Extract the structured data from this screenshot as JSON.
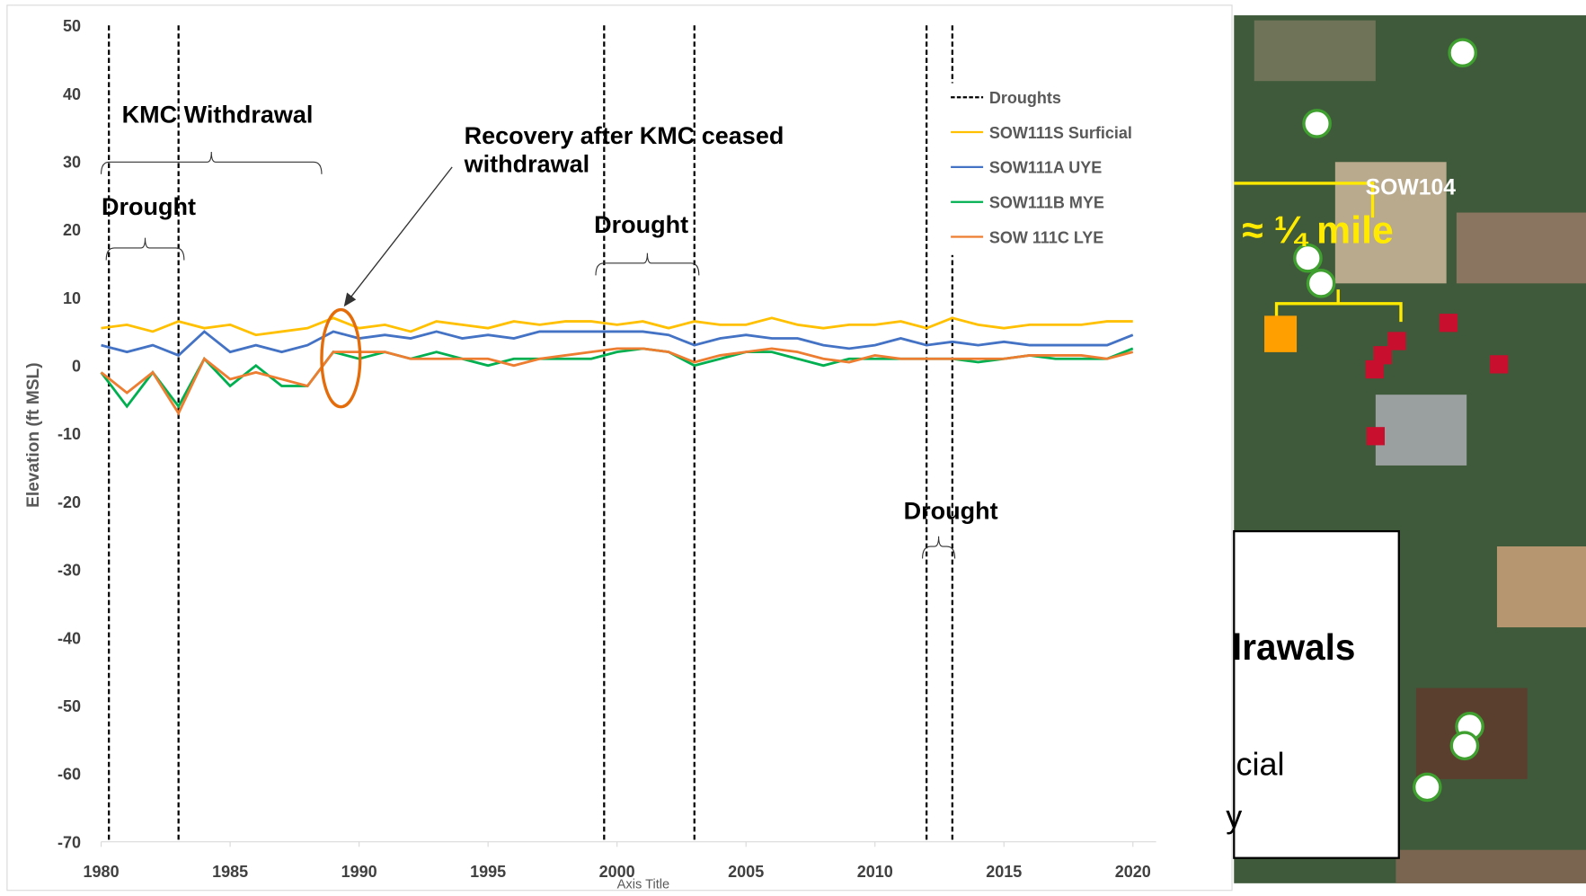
{
  "chart_data": {
    "type": "line",
    "y_title": "Elevation (ft MSL)",
    "x_title": "Axis Title",
    "xlim": [
      1980,
      2020.9
    ],
    "xticks": [
      1980,
      1985,
      1990,
      1995,
      2000,
      2005,
      2010,
      2015,
      2020
    ],
    "ylim": [
      -70,
      50
    ],
    "yticks": [
      -70,
      -60,
      -50,
      -40,
      -30,
      -20,
      -10,
      0,
      10,
      20,
      30,
      40,
      50
    ],
    "grid": false,
    "droughts": {
      "name": "Droughts",
      "color": "#000000",
      "x": [
        1980.3,
        1983,
        1999.5,
        2003,
        2012,
        2013
      ]
    },
    "x": [
      1980,
      1981,
      1982,
      1983,
      1984,
      1985,
      1986,
      1987,
      1988,
      1989,
      1990,
      1991,
      1992,
      1993,
      1994,
      1995,
      1996,
      1997,
      1998,
      1999,
      2000,
      2001,
      2002,
      2003,
      2004,
      2005,
      2006,
      2007,
      2008,
      2009,
      2010,
      2011,
      2012,
      2013,
      2014,
      2015,
      2016,
      2017,
      2018,
      2019,
      2020
    ],
    "series": [
      {
        "name": "SOW111S Surficial",
        "color": "#ffc000",
        "values": [
          5.5,
          6,
          5,
          6.5,
          5.5,
          6,
          4.5,
          5,
          5.5,
          7,
          5.5,
          6,
          5,
          6.5,
          6,
          5.5,
          6.5,
          6,
          6.5,
          6.5,
          6,
          6.5,
          5.5,
          6.5,
          6,
          6,
          7,
          6,
          5.5,
          6,
          6,
          6.5,
          5.5,
          7,
          6,
          5.5,
          6,
          6,
          6,
          6.5,
          6.5
        ]
      },
      {
        "name": "SOW111A UYE",
        "color": "#4472c4",
        "values": [
          3,
          2,
          3,
          1.5,
          5,
          2,
          3,
          2,
          3,
          5,
          4,
          4.5,
          4,
          5,
          4,
          4.5,
          4,
          5,
          5,
          5,
          5,
          5,
          4.5,
          3,
          4,
          4.5,
          4,
          4,
          3,
          2.5,
          3,
          4,
          3,
          3.5,
          3,
          3.5,
          3,
          3,
          3,
          3,
          4.5
        ]
      },
      {
        "name": "SOW111B MYE",
        "color": "#00b050",
        "values": [
          -1,
          -6,
          -1,
          -6,
          1,
          -3,
          0,
          -3,
          -3,
          2,
          1,
          2,
          1,
          2,
          1,
          0,
          1,
          1,
          1,
          1,
          2,
          2.5,
          2,
          0,
          1,
          2,
          2,
          1,
          0,
          1,
          1,
          1,
          1,
          1,
          0.5,
          1,
          1.5,
          1,
          1,
          1,
          2.5
        ]
      },
      {
        "name": "SOW 111C LYE",
        "color": "#ed7d31",
        "values": [
          -1,
          -4,
          -1,
          -7,
          1,
          -2,
          -1,
          -2,
          -3,
          2,
          2,
          2,
          1,
          1,
          1,
          1,
          0,
          1,
          1.5,
          2,
          2.5,
          2.5,
          2,
          0.5,
          1.5,
          2,
          2.5,
          2,
          1,
          0.5,
          1.5,
          1,
          1,
          1,
          1,
          1,
          1.5,
          1.5,
          1.5,
          1,
          2
        ]
      }
    ],
    "annotations": [
      "KMC Withdrawal",
      "Drought",
      "Recovery after KMC ceased",
      "withdrawal",
      "Drought",
      "Drought"
    ]
  },
  "map": {
    "labels": [
      "SOW104",
      "≈ ¼ mile",
      "lrawals",
      "cial",
      "y"
    ]
  }
}
